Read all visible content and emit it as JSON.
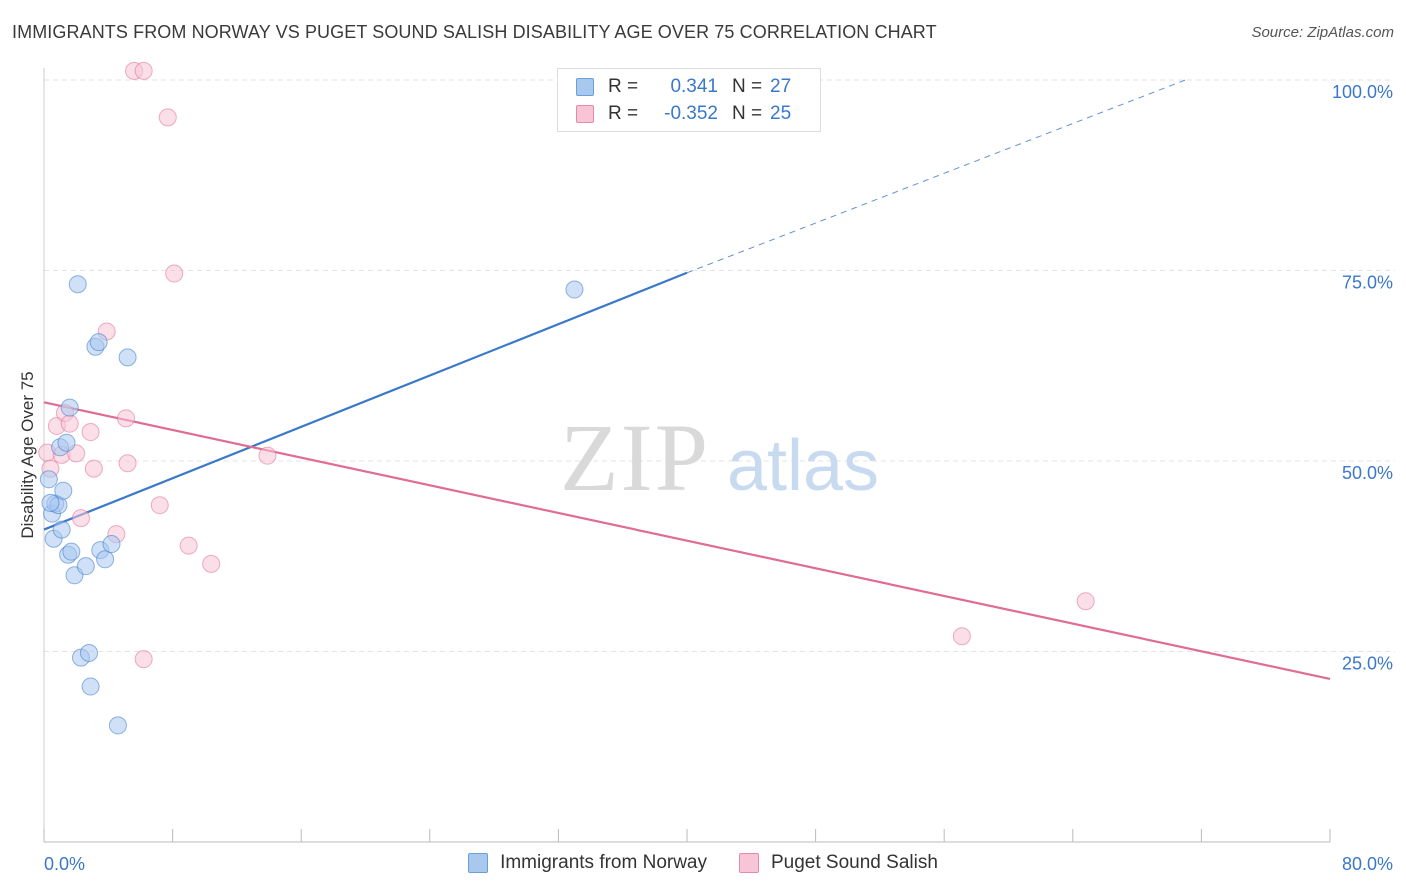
{
  "title": "IMMIGRANTS FROM NORWAY VS PUGET SOUND SALISH DISABILITY AGE OVER 75 CORRELATION CHART",
  "source": "Source: ZipAtlas.com",
  "watermark": {
    "zip": "ZIP",
    "atlas": "atlas"
  },
  "legend": {
    "rows": [
      {
        "r_label": "R =",
        "r_value": "0.341",
        "n_label": "N =",
        "n_value": "27",
        "color": "#a9c8f0",
        "border": "#6a9fd8"
      },
      {
        "r_label": "R =",
        "r_value": "-0.352",
        "n_label": "N =",
        "n_value": "25",
        "color": "#f7c5d5",
        "border": "#e58aa8"
      }
    ]
  },
  "chart_data": {
    "type": "scatter",
    "title": "IMMIGRANTS FROM NORWAY VS PUGET SOUND SALISH DISABILITY AGE OVER 75 CORRELATION CHART",
    "xlabel": "",
    "ylabel": "Disability Age Over 75",
    "xlim": [
      0,
      80
    ],
    "ylim": [
      0,
      100
    ],
    "x_tick_labels": [
      "0.0%",
      "80.0%"
    ],
    "y_ticks": [
      25,
      50,
      75,
      100
    ],
    "y_tick_labels": [
      "25.0%",
      "50.0%",
      "75.0%",
      "100.0%"
    ],
    "grid": true,
    "legend_position": "bottom-center",
    "series": [
      {
        "name": "Immigrants from Norway",
        "color": "#3a78c9",
        "fill": "#a9c8f0",
        "points": [
          [
            0.3,
            47.6
          ],
          [
            0.5,
            43.1
          ],
          [
            0.6,
            39.8
          ],
          [
            0.7,
            44.4
          ],
          [
            0.9,
            44.2
          ],
          [
            1.0,
            51.8
          ],
          [
            1.1,
            41.0
          ],
          [
            1.2,
            46.1
          ],
          [
            1.4,
            52.4
          ],
          [
            1.6,
            57.0
          ],
          [
            1.5,
            37.7
          ],
          [
            1.7,
            38.1
          ],
          [
            1.9,
            35.0
          ],
          [
            2.1,
            73.2
          ],
          [
            2.3,
            24.2
          ],
          [
            2.6,
            36.2
          ],
          [
            2.8,
            24.8
          ],
          [
            2.9,
            20.4
          ],
          [
            3.2,
            65.0
          ],
          [
            3.4,
            65.6
          ],
          [
            3.5,
            38.3
          ],
          [
            3.8,
            37.1
          ],
          [
            4.2,
            39.1
          ],
          [
            4.6,
            15.3
          ],
          [
            5.2,
            63.6
          ],
          [
            33.0,
            72.5
          ],
          [
            0.4,
            44.5
          ]
        ],
        "trend": {
          "x0": 0,
          "y0": 41.0,
          "x1": 40,
          "y1": 74.7,
          "dashed_to_x": 71,
          "dashed_to_y": 100
        }
      },
      {
        "name": "Puget Sound Salish",
        "color": "#e06c95",
        "fill": "#f7c5d5",
        "points": [
          [
            0.2,
            51.1
          ],
          [
            0.4,
            49.0
          ],
          [
            0.8,
            54.6
          ],
          [
            1.1,
            50.8
          ],
          [
            1.3,
            56.3
          ],
          [
            1.6,
            54.9
          ],
          [
            2.0,
            51.0
          ],
          [
            2.3,
            42.5
          ],
          [
            2.9,
            53.8
          ],
          [
            3.1,
            49.0
          ],
          [
            4.5,
            40.4
          ],
          [
            5.1,
            55.6
          ],
          [
            5.2,
            49.7
          ],
          [
            3.9,
            67.0
          ],
          [
            5.6,
            101.2
          ],
          [
            6.2,
            101.2
          ],
          [
            7.7,
            95.1
          ],
          [
            8.1,
            74.6
          ],
          [
            6.2,
            24.0
          ],
          [
            7.2,
            44.2
          ],
          [
            9.0,
            38.9
          ],
          [
            10.4,
            36.5
          ],
          [
            13.9,
            50.7
          ],
          [
            57.1,
            27.0
          ],
          [
            64.8,
            31.6
          ]
        ],
        "trend": {
          "x0": 0,
          "y0": 57.7,
          "x1": 80,
          "y1": 21.4
        }
      }
    ]
  }
}
